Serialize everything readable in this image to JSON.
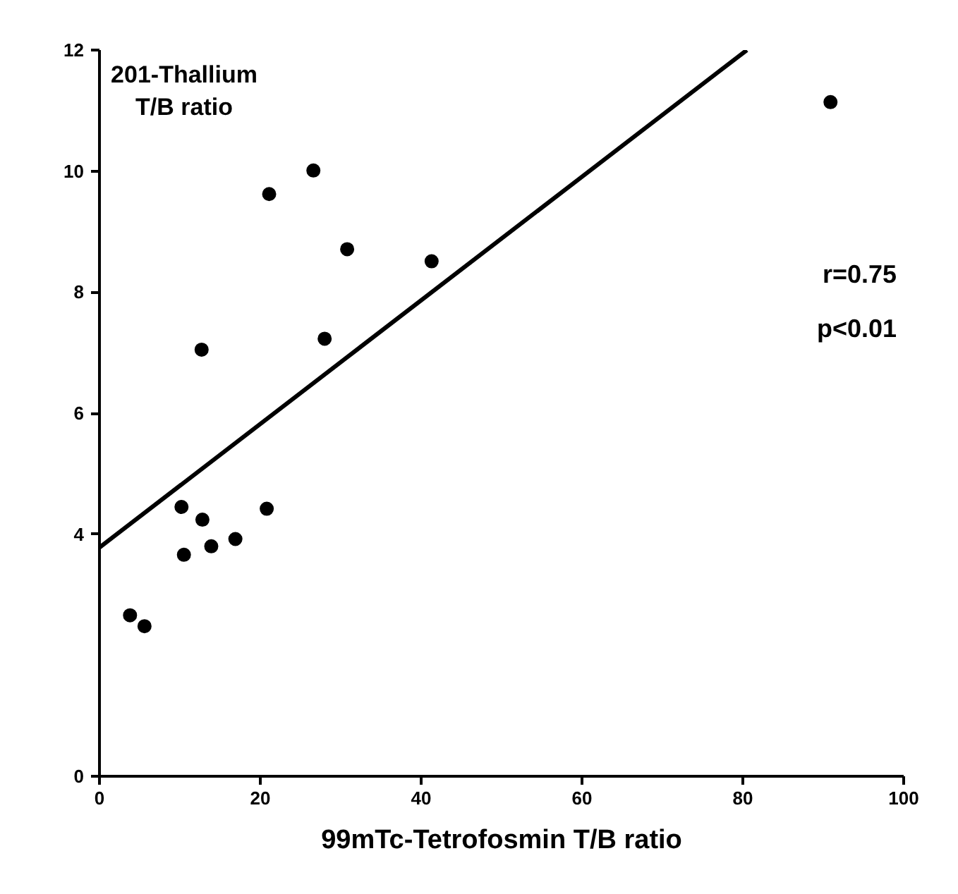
{
  "chart_data": {
    "type": "scatter",
    "xlabel": "99mTc-Tetrofosmin T/B ratio",
    "ylabel": "201-Thallium\nT/B ratio",
    "annotations": [
      "r=0.75",
      "p<0.01"
    ],
    "xlim": [
      0,
      100
    ],
    "ylim": [
      0,
      12
    ],
    "xticks": [
      0,
      20,
      40,
      60,
      80,
      100
    ],
    "yticks": [
      0,
      4,
      6,
      8,
      10,
      12
    ],
    "grid": false,
    "series": [
      {
        "color": "#000000",
        "marker": "circle",
        "x": [
          3.8,
          5.6,
          10.2,
          10.5,
          12.8,
          13.9,
          16.9,
          20.8,
          12.7,
          21.1,
          26.6,
          30.8,
          28.0,
          41.3,
          90.9
        ],
        "values": [
          2.66,
          2.48,
          4.45,
          3.66,
          4.24,
          3.8,
          3.92,
          4.42,
          7.05,
          9.62,
          10.01,
          8.71,
          7.23,
          8.51,
          11.14
        ]
      },
      {
        "type": "line",
        "color": "#000000",
        "x": [
          0,
          80.5
        ],
        "values": [
          3.78,
          12
        ],
        "line_style": "solid"
      }
    ]
  }
}
